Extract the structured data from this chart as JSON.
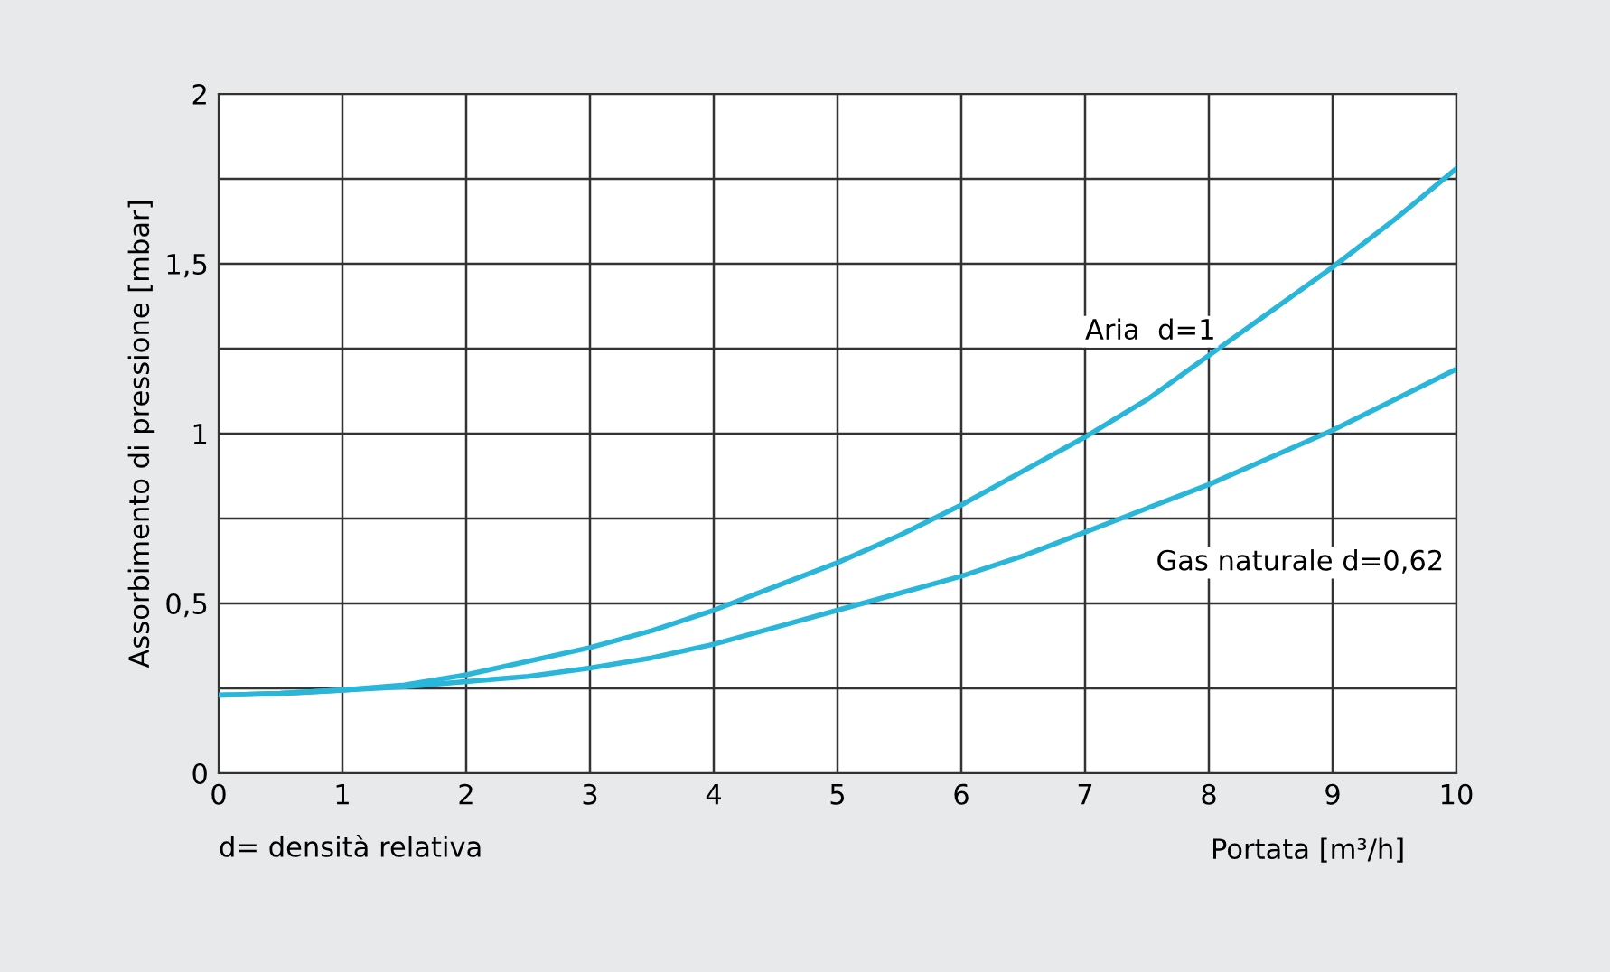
{
  "chart_data": {
    "type": "line",
    "xlabel": "Portata [m³/h]",
    "ylabel": "Assorbimento di pressione [mbar]",
    "x": [
      0,
      0.5,
      1,
      1.5,
      2,
      2.5,
      3,
      3.5,
      4,
      4.5,
      5,
      5.5,
      6,
      6.5,
      7,
      7.5,
      8,
      8.5,
      9,
      9.5,
      10
    ],
    "series": [
      {
        "name": "Aria  d=1",
        "color": "#29b6d9",
        "values": [
          0.23,
          0.235,
          0.245,
          0.26,
          0.29,
          0.33,
          0.37,
          0.42,
          0.48,
          0.55,
          0.62,
          0.7,
          0.79,
          0.89,
          0.99,
          1.1,
          1.23,
          1.36,
          1.49,
          1.63,
          1.78
        ]
      },
      {
        "name": "Gas naturale d=0,62",
        "color": "#29b6d9",
        "values": [
          0.23,
          0.235,
          0.245,
          0.255,
          0.27,
          0.285,
          0.31,
          0.34,
          0.38,
          0.43,
          0.48,
          0.53,
          0.58,
          0.64,
          0.71,
          0.78,
          0.85,
          0.93,
          1.01,
          1.1,
          1.19
        ]
      }
    ],
    "xlim": [
      0,
      10
    ],
    "xticks": [
      0,
      1,
      2,
      3,
      4,
      5,
      6,
      7,
      8,
      9,
      10
    ],
    "ylim": [
      0,
      2
    ],
    "yticks": [
      0,
      {
        "value": 0.25,
        "label": null
      },
      {
        "value": 0.5,
        "label": "0,5"
      },
      {
        "value": 0.75,
        "label": null
      },
      1,
      {
        "value": 1.25,
        "label": null
      },
      {
        "value": 1.5,
        "label": "1,5"
      },
      {
        "value": 1.75,
        "label": null
      },
      2
    ],
    "grid": true,
    "line_style": "solid",
    "marker": "none",
    "annotations": [
      "d= densità relativa"
    ]
  }
}
